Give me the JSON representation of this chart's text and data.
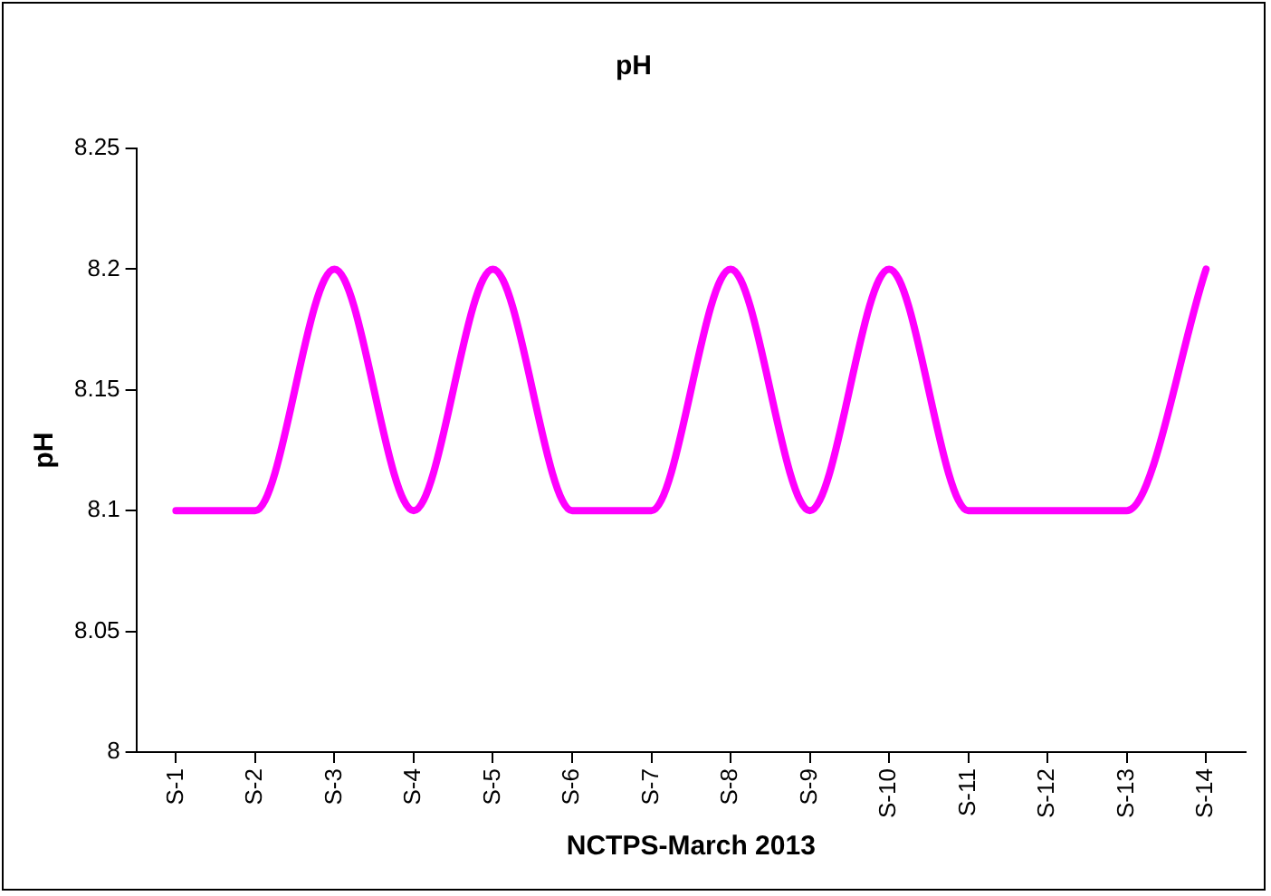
{
  "chart_data": {
    "type": "line",
    "title": "pH",
    "xlabel": "NCTPS-March 2013",
    "ylabel": "pH",
    "categories": [
      "S-1",
      "S-2",
      "S-3",
      "S-4",
      "S-5",
      "S-6",
      "S-7",
      "S-8",
      "S-9",
      "S-10",
      "S-11",
      "S-12",
      "S-13",
      "S-14"
    ],
    "series": [
      {
        "color": "#ff00ff",
        "values": [
          8.1,
          8.1,
          8.2,
          8.1,
          8.2,
          8.1,
          8.1,
          8.2,
          8.1,
          8.2,
          8.1,
          8.1,
          8.1,
          8.2
        ]
      }
    ],
    "ylim": [
      8,
      8.25
    ],
    "yticks": [
      8,
      8.05,
      8.1,
      8.15,
      8.2,
      8.25
    ],
    "grid": false,
    "legend": false,
    "marker": "none",
    "line_style": "solid"
  }
}
